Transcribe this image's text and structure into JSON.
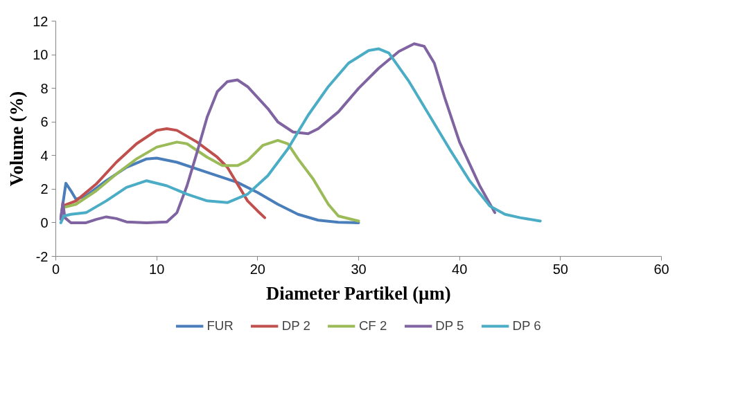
{
  "chart_data": {
    "type": "line",
    "xlabel": "Diameter Partikel (µm)",
    "ylabel": "Volume (%)",
    "xlim": [
      0,
      60
    ],
    "ylim": [
      -2,
      12
    ],
    "xticks": [
      0,
      10,
      20,
      30,
      40,
      50,
      60
    ],
    "yticks": [
      -2,
      0,
      2,
      4,
      6,
      8,
      10,
      12
    ],
    "grid": false,
    "legend": "bottom",
    "series": [
      {
        "name": "FUR",
        "color": "#4a7ebb",
        "x": [
          0.5,
          1,
          1.5,
          2,
          3,
          5,
          7,
          9,
          10,
          12,
          15,
          18,
          20,
          22,
          24,
          26,
          28,
          30
        ],
        "values": [
          0.3,
          2.35,
          1.9,
          1.4,
          1.6,
          2.5,
          3.3,
          3.8,
          3.85,
          3.6,
          3.0,
          2.4,
          1.8,
          1.1,
          0.5,
          0.15,
          0.03,
          0
        ]
      },
      {
        "name": "DP 2",
        "color": "#c0504d",
        "x": [
          0.7,
          2,
          4,
          6,
          8,
          10,
          11,
          12,
          14,
          16,
          17,
          18,
          19,
          20,
          20.7
        ],
        "values": [
          1.0,
          1.3,
          2.3,
          3.6,
          4.7,
          5.5,
          5.6,
          5.5,
          4.8,
          3.9,
          3.3,
          2.3,
          1.3,
          0.7,
          0.3
        ]
      },
      {
        "name": "CF 2",
        "color": "#9bbb59",
        "x": [
          0.7,
          2,
          4,
          6,
          8,
          10,
          12,
          13,
          15,
          16.5,
          18,
          19,
          20.5,
          22,
          23,
          24,
          25.5,
          27,
          28,
          30
        ],
        "values": [
          0.9,
          1.1,
          1.9,
          2.9,
          3.8,
          4.5,
          4.8,
          4.7,
          3.9,
          3.4,
          3.4,
          3.7,
          4.6,
          4.9,
          4.7,
          3.8,
          2.6,
          1.1,
          0.4,
          0.1
        ]
      },
      {
        "name": "DP 5",
        "color": "#8064a2",
        "x": [
          0.5,
          0.7,
          0.9,
          1.5,
          3,
          4,
          5,
          6,
          7,
          9,
          11,
          12,
          13,
          14,
          15,
          16,
          17,
          18,
          19,
          21,
          22,
          23.5,
          25,
          26,
          28,
          30,
          32,
          34,
          35.5,
          36.5,
          37.5,
          38.5,
          40,
          42,
          43.5
        ],
        "values": [
          0.2,
          1.2,
          0.3,
          0,
          0,
          0.2,
          0.35,
          0.25,
          0.05,
          0,
          0.05,
          0.6,
          2.2,
          4.2,
          6.3,
          7.8,
          8.4,
          8.5,
          8.1,
          6.8,
          6.0,
          5.4,
          5.3,
          5.6,
          6.6,
          8.0,
          9.2,
          10.2,
          10.65,
          10.5,
          9.5,
          7.5,
          4.8,
          2.2,
          0.6
        ]
      },
      {
        "name": "DP 6",
        "color": "#4bacc6",
        "x": [
          0.5,
          0.8,
          1.5,
          3,
          5,
          7,
          9,
          11,
          13,
          15,
          17,
          19,
          21,
          23,
          25,
          27,
          29,
          31,
          32,
          33,
          35,
          37,
          39,
          41,
          43,
          44.5,
          46,
          48
        ],
        "values": [
          0,
          0.4,
          0.5,
          0.6,
          1.3,
          2.1,
          2.5,
          2.2,
          1.7,
          1.3,
          1.2,
          1.7,
          2.8,
          4.4,
          6.4,
          8.1,
          9.5,
          10.25,
          10.35,
          10.1,
          8.4,
          6.4,
          4.4,
          2.5,
          1.0,
          0.5,
          0.3,
          0.1
        ]
      }
    ]
  }
}
